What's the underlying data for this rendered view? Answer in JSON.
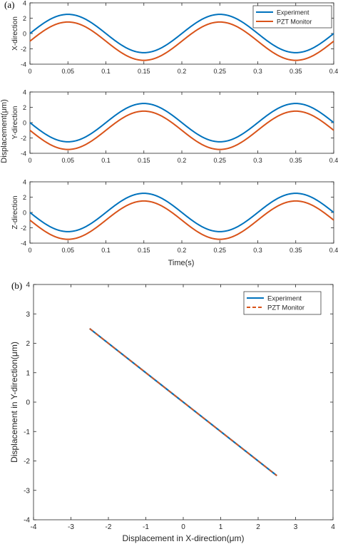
{
  "figure": {
    "label_a": "(a)",
    "label_b": "(b)",
    "shared_ylabel": "Displacement(μm)",
    "shared_xlabel": "Time(s)"
  },
  "colors": {
    "experiment": "#0072BD",
    "pzt": "#D95319",
    "axis": "#262626"
  },
  "chart_data": [
    {
      "type": "line",
      "panel": "a",
      "ylabel": "X-direction",
      "xlim": [
        0,
        0.4
      ],
      "ylim": [
        -4,
        4
      ],
      "xticks": [
        "0",
        "0.05",
        "0.1",
        "0.15",
        "0.2",
        "0.25",
        "0.3",
        "0.35",
        "0.4"
      ],
      "yticks": [
        "4",
        "2",
        "0",
        "-2",
        "-4"
      ],
      "legend": "top-right",
      "period": 0.2,
      "series": [
        {
          "name": "Experiment",
          "amplitude": 2.5,
          "offset": 0,
          "peak_at": 0.05
        },
        {
          "name": "PZT Monitor",
          "amplitude": 2.5,
          "offset": -1,
          "peak_at": 0.05
        }
      ]
    },
    {
      "type": "line",
      "panel": "a",
      "ylabel": "Y-direction",
      "xlim": [
        0,
        0.4
      ],
      "ylim": [
        -4,
        4
      ],
      "xticks": [
        "0",
        "0.05",
        "0.1",
        "0.15",
        "0.2",
        "0.25",
        "0.3",
        "0.35",
        "0.4"
      ],
      "yticks": [
        "4",
        "2",
        "0",
        "-2",
        "-4"
      ],
      "period": 0.2,
      "series": [
        {
          "name": "Experiment",
          "amplitude": 2.5,
          "offset": 0,
          "peak_at": 0.15
        },
        {
          "name": "PZT Monitor",
          "amplitude": 2.5,
          "offset": -1,
          "peak_at": 0.15
        }
      ]
    },
    {
      "type": "line",
      "panel": "a",
      "ylabel": "Z-direction",
      "xlim": [
        0,
        0.4
      ],
      "ylim": [
        -4,
        4
      ],
      "xticks": [
        "0",
        "0.05",
        "0.1",
        "0.15",
        "0.2",
        "0.25",
        "0.3",
        "0.35",
        "0.4"
      ],
      "yticks": [
        "4",
        "2",
        "0",
        "-2",
        "-4"
      ],
      "period": 0.2,
      "series": [
        {
          "name": "Experiment",
          "amplitude": 2.5,
          "offset": 0,
          "peak_at": 0.15
        },
        {
          "name": "PZT Monitor",
          "amplitude": 2.5,
          "offset": -1,
          "peak_at": 0.15
        }
      ]
    },
    {
      "type": "line",
      "panel": "b",
      "xlabel": "Displacement in X-direction(μm)",
      "ylabel": "Displacement in Y-direction(μm)",
      "xlim": [
        -4,
        4
      ],
      "ylim": [
        -4,
        4
      ],
      "xticks": [
        "-4",
        "-3",
        "-2",
        "-1",
        "0",
        "1",
        "2",
        "3",
        "4"
      ],
      "yticks": [
        "4",
        "3",
        "2",
        "1",
        "0",
        "-1",
        "-2",
        "-3",
        "-4"
      ],
      "legend": "top-right",
      "series": [
        {
          "name": "Experiment",
          "x": [
            -2.5,
            2.5
          ],
          "y": [
            2.5,
            -2.5
          ]
        },
        {
          "name": "PZT Monitor",
          "x": [
            -2.5,
            2.5
          ],
          "y": [
            2.5,
            -2.5
          ]
        }
      ]
    }
  ]
}
